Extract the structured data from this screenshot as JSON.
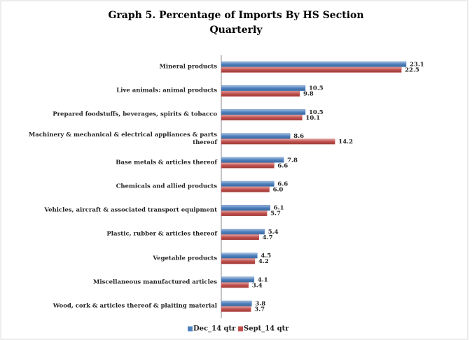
{
  "chart_data": {
    "type": "bar",
    "orientation": "horizontal",
    "title": "Graph 5. Percentage of Imports By HS Section",
    "subtitle": "Quarterly",
    "categories": [
      "Mineral products",
      "Live animals: animal products",
      "Prepared foodstuffs,  beverages, spirits & tobacco",
      "Machinery & mechanical & electrical appliances & parts thereof",
      "Base metals & articles thereof",
      "Chemicals and allied products",
      "Vehicles, aircraft & associated transport equipment",
      "Plastic, rubber & articles thereof",
      "Vegetable products",
      "Miscellaneous manufactured articles",
      "Wood, cork & articles thereof & plaiting material"
    ],
    "series": [
      {
        "name": "Dec_14 qtr",
        "color": "#4f81bd",
        "values": [
          23.1,
          10.5,
          10.5,
          8.6,
          7.8,
          6.6,
          6.1,
          5.4,
          4.5,
          4.1,
          3.8
        ],
        "value_labels": [
          "23.1",
          "10.5",
          "10.5",
          "8.6",
          "7.8",
          "6.6",
          "6.1",
          "5.4",
          "4.5",
          "4.1",
          "3.8"
        ]
      },
      {
        "name": "Sept_14 qtr",
        "color": "#c0504d",
        "values": [
          22.5,
          9.8,
          10.1,
          14.2,
          6.6,
          6.0,
          5.7,
          4.7,
          4.2,
          3.4,
          3.7
        ],
        "value_labels": [
          "22.5",
          "9.8",
          "10.1",
          "14.2",
          "6.6",
          "6.0",
          "5.7",
          "4.7",
          "4.2",
          "3.4",
          "3.7"
        ]
      }
    ],
    "legend": "bottom"
  }
}
